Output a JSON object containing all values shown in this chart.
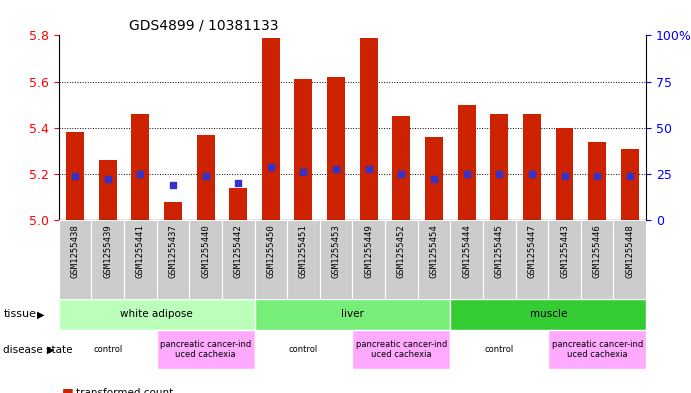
{
  "title": "GDS4899 / 10381133",
  "samples": [
    "GSM1255438",
    "GSM1255439",
    "GSM1255441",
    "GSM1255437",
    "GSM1255440",
    "GSM1255442",
    "GSM1255450",
    "GSM1255451",
    "GSM1255453",
    "GSM1255449",
    "GSM1255452",
    "GSM1255454",
    "GSM1255444",
    "GSM1255445",
    "GSM1255447",
    "GSM1255443",
    "GSM1255446",
    "GSM1255448"
  ],
  "bar_heights": [
    5.38,
    5.26,
    5.46,
    5.08,
    5.37,
    5.14,
    5.79,
    5.61,
    5.62,
    5.79,
    5.45,
    5.36,
    5.5,
    5.46,
    5.46,
    5.4,
    5.34,
    5.31
  ],
  "blue_values": [
    5.19,
    5.18,
    5.2,
    5.15,
    5.19,
    5.16,
    5.23,
    5.21,
    5.22,
    5.22,
    5.2,
    5.18,
    5.2,
    5.2,
    5.2,
    5.19,
    5.19,
    5.19
  ],
  "ymin": 5.0,
  "ymax": 5.8,
  "yticks": [
    5.0,
    5.2,
    5.4,
    5.6,
    5.8
  ],
  "right_yticks": [
    0,
    25,
    50,
    75,
    100
  ],
  "right_ytick_labels": [
    "0",
    "25",
    "50",
    "75",
    "100%"
  ],
  "bar_color": "#cc2200",
  "blue_color": "#3333cc",
  "tissue_groups": [
    {
      "label": "white adipose",
      "start": 0,
      "end": 6,
      "color": "#bbffbb"
    },
    {
      "label": "liver",
      "start": 6,
      "end": 12,
      "color": "#77ee77"
    },
    {
      "label": "muscle",
      "start": 12,
      "end": 18,
      "color": "#33cc33"
    }
  ],
  "disease_groups": [
    {
      "label": "control",
      "start": 0,
      "end": 3,
      "is_cancer": false
    },
    {
      "label": "pancreatic cancer-ind\nuced cachexia",
      "start": 3,
      "end": 6,
      "is_cancer": true
    },
    {
      "label": "control",
      "start": 6,
      "end": 9,
      "is_cancer": false
    },
    {
      "label": "pancreatic cancer-ind\nuced cachexia",
      "start": 9,
      "end": 12,
      "is_cancer": true
    },
    {
      "label": "control",
      "start": 12,
      "end": 15,
      "is_cancer": false
    },
    {
      "label": "pancreatic cancer-ind\nuced cachexia",
      "start": 15,
      "end": 18,
      "is_cancer": true
    }
  ],
  "control_color": "#ffffff",
  "cancer_color": "#ffaaff",
  "bar_width": 0.55,
  "label_fontsize": 7,
  "title_fontsize": 10,
  "tick_fontsize": 6.5,
  "annotation_fontsize": 7.5
}
